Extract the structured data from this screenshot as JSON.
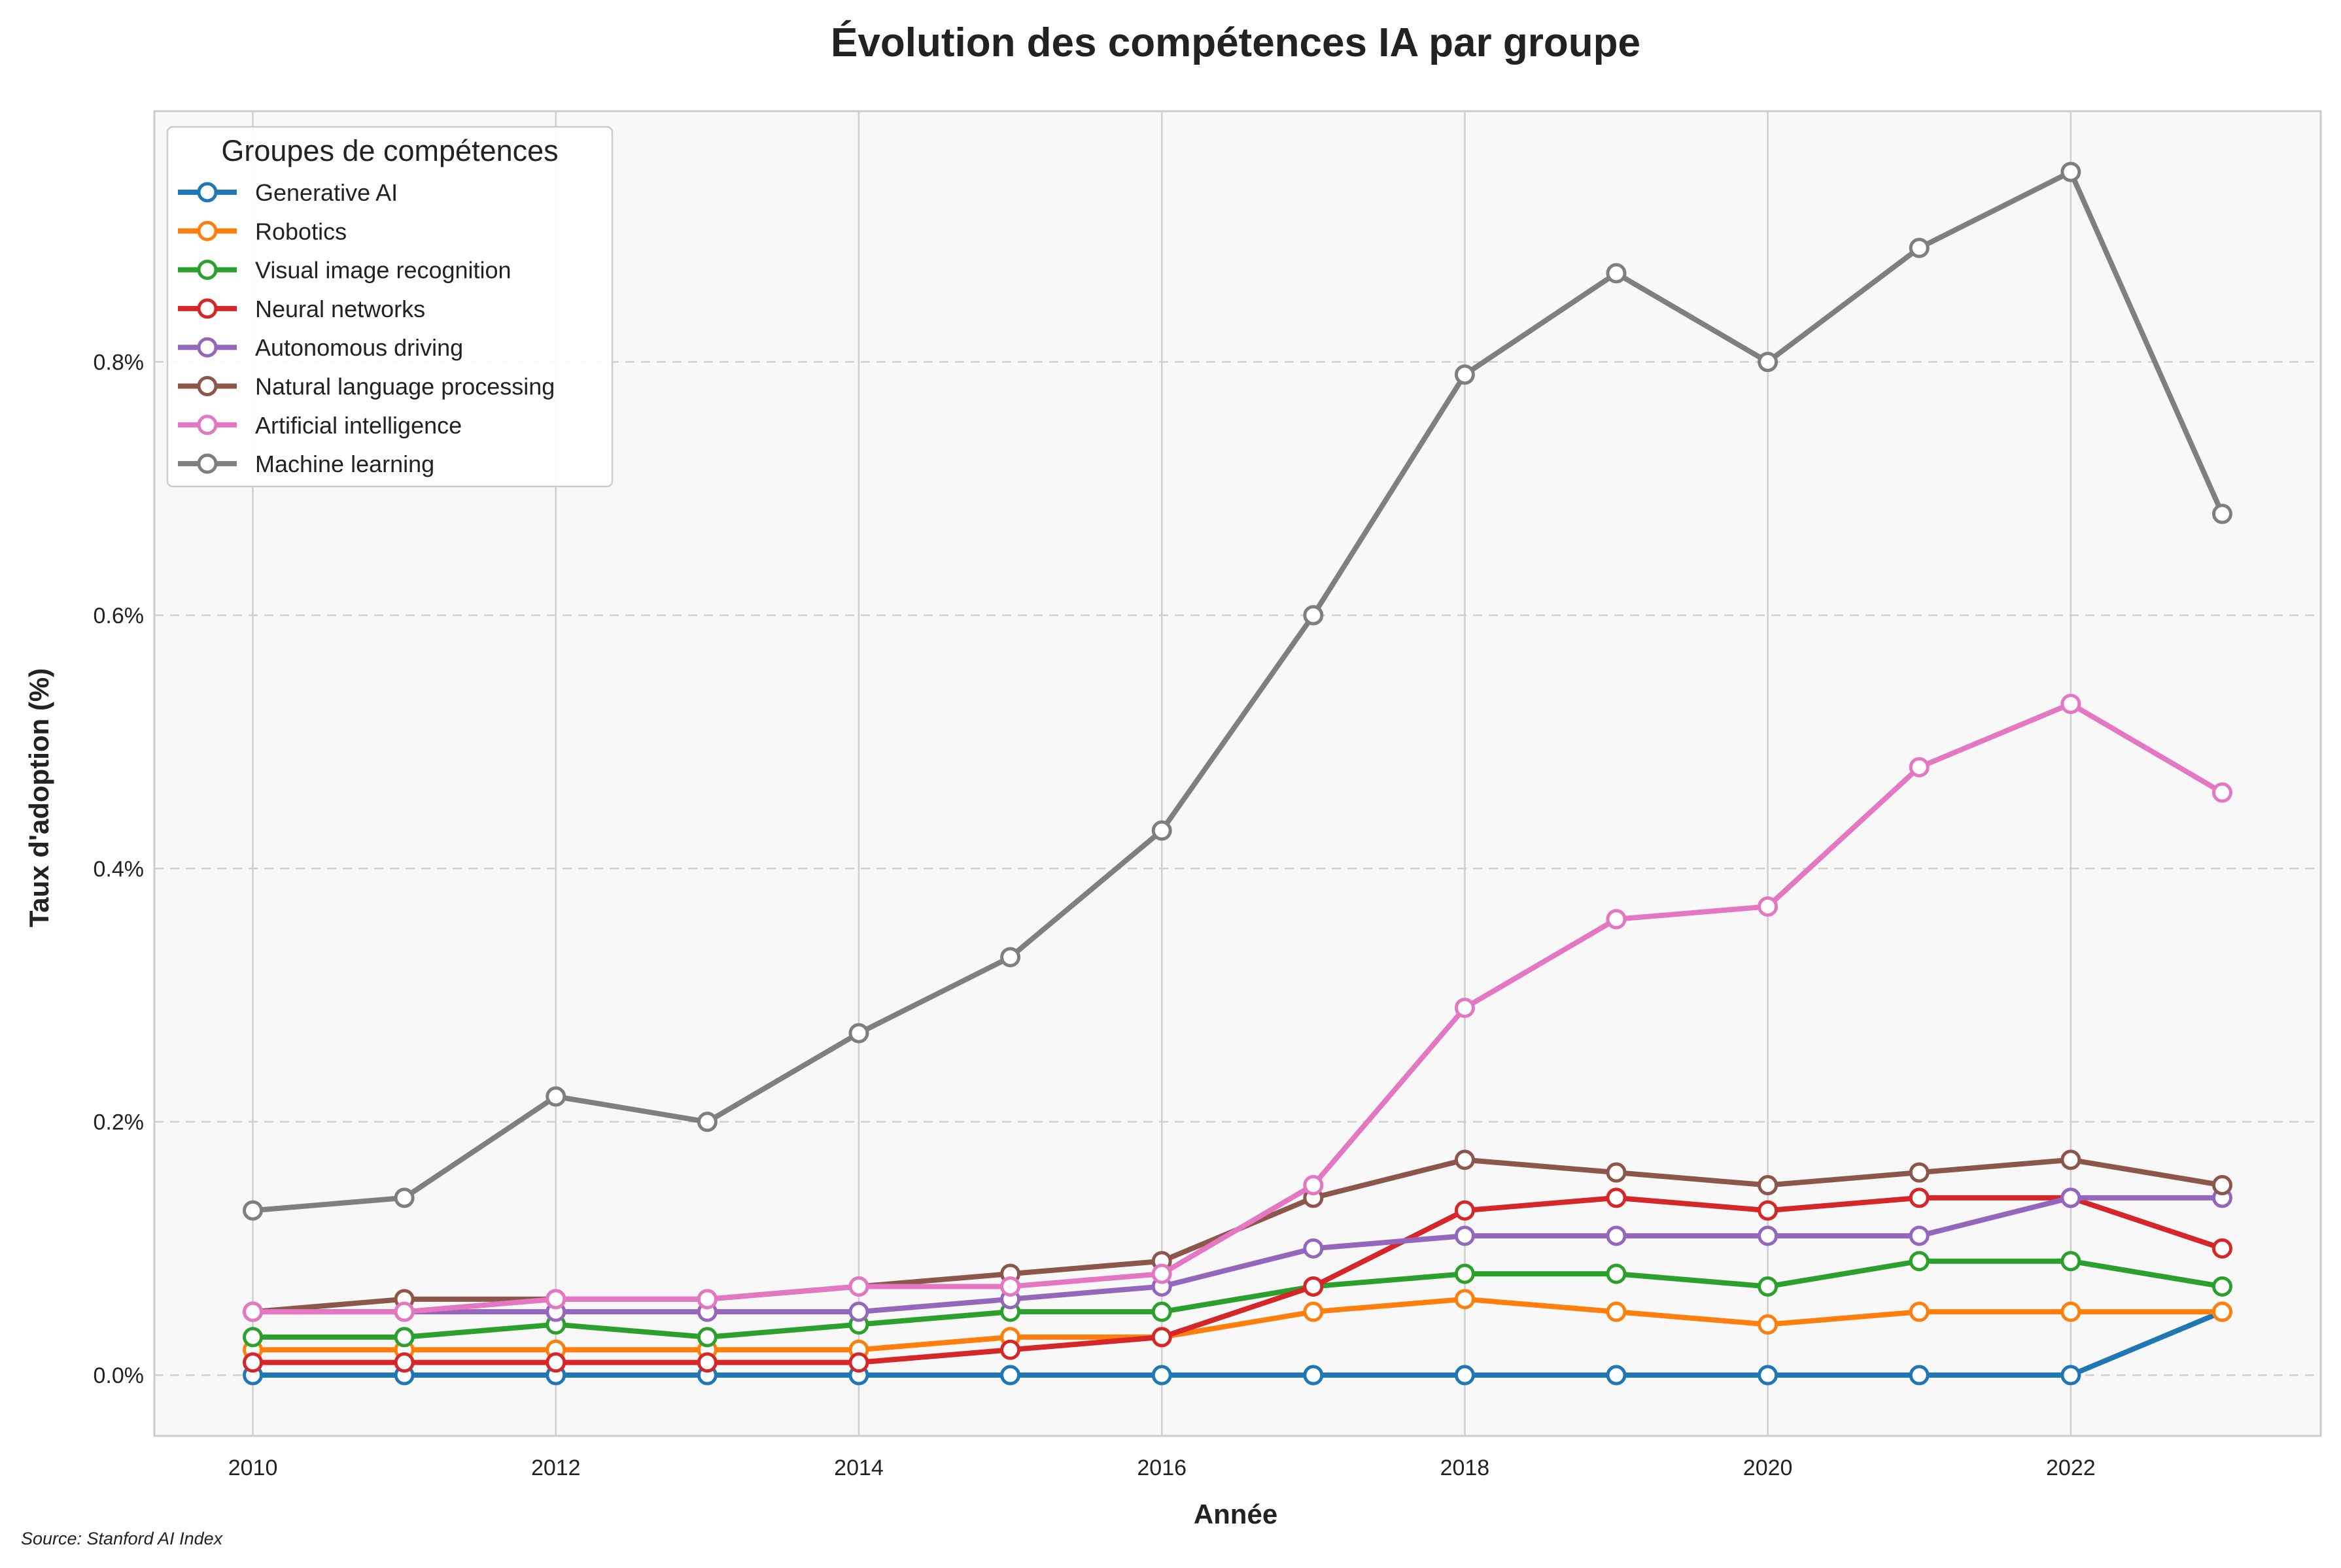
{
  "chart_data": {
    "type": "line",
    "title": "Évolution des compétences IA par groupe",
    "xlabel": "Année",
    "ylabel": "Taux d'adoption (%)",
    "source": "Source: Stanford AI Index",
    "xlim": [
      2009.35,
      2023.65
    ],
    "ylim": [
      -0.048,
      0.998
    ],
    "x": [
      2010,
      2011,
      2012,
      2013,
      2014,
      2015,
      2016,
      2017,
      2018,
      2019,
      2020,
      2021,
      2022,
      2023
    ],
    "x_ticks": [
      2010,
      2012,
      2014,
      2016,
      2018,
      2020,
      2022
    ],
    "x_tick_labels": [
      "2010",
      "2012",
      "2014",
      "2016",
      "2018",
      "2020",
      "2022"
    ],
    "y_ticks": [
      0,
      0.2,
      0.4,
      0.6,
      0.8
    ],
    "y_tick_labels": [
      "0.0%",
      "0.2%",
      "0.4%",
      "0.6%",
      "0.8%"
    ],
    "grid": true,
    "legend": {
      "title": "Groupes de compétences",
      "position": "top-left"
    },
    "series": [
      {
        "name": "Generative AI",
        "color": "#1f77b4",
        "values": [
          0,
          0,
          0,
          0,
          0,
          0,
          0,
          0,
          0,
          0,
          0,
          0,
          0,
          0.05
        ]
      },
      {
        "name": "Robotics",
        "color": "#ff7f0e",
        "values": [
          0.02,
          0.02,
          0.02,
          0.02,
          0.02,
          0.03,
          0.03,
          0.05,
          0.06,
          0.05,
          0.04,
          0.05,
          0.05,
          0.05
        ]
      },
      {
        "name": "Visual image recognition",
        "color": "#2ca02c",
        "values": [
          0.03,
          0.03,
          0.04,
          0.03,
          0.04,
          0.05,
          0.05,
          0.07,
          0.08,
          0.08,
          0.07,
          0.09,
          0.09,
          0.07
        ]
      },
      {
        "name": "Neural networks",
        "color": "#d62728",
        "values": [
          0.01,
          0.01,
          0.01,
          0.01,
          0.01,
          0.02,
          0.03,
          0.07,
          0.13,
          0.14,
          0.13,
          0.14,
          0.14,
          0.1
        ]
      },
      {
        "name": "Autonomous driving",
        "color": "#9467bd",
        "values": [
          0.05,
          0.05,
          0.05,
          0.05,
          0.05,
          0.06,
          0.07,
          0.1,
          0.11,
          0.11,
          0.11,
          0.11,
          0.14,
          0.14
        ]
      },
      {
        "name": "Natural language processing",
        "color": "#8c564b",
        "values": [
          0.05,
          0.06,
          0.06,
          0.06,
          0.07,
          0.08,
          0.09,
          0.14,
          0.17,
          0.16,
          0.15,
          0.16,
          0.17,
          0.15
        ]
      },
      {
        "name": "Artificial intelligence",
        "color": "#e377c2",
        "values": [
          0.05,
          0.05,
          0.06,
          0.06,
          0.07,
          0.07,
          0.08,
          0.15,
          0.29,
          0.36,
          0.37,
          0.48,
          0.53,
          0.46
        ]
      },
      {
        "name": "Machine learning",
        "color": "#7f7f7f",
        "values": [
          0.13,
          0.14,
          0.22,
          0.2,
          0.27,
          0.33,
          0.43,
          0.6,
          0.79,
          0.87,
          0.8,
          0.89,
          0.95,
          0.68
        ]
      }
    ]
  }
}
